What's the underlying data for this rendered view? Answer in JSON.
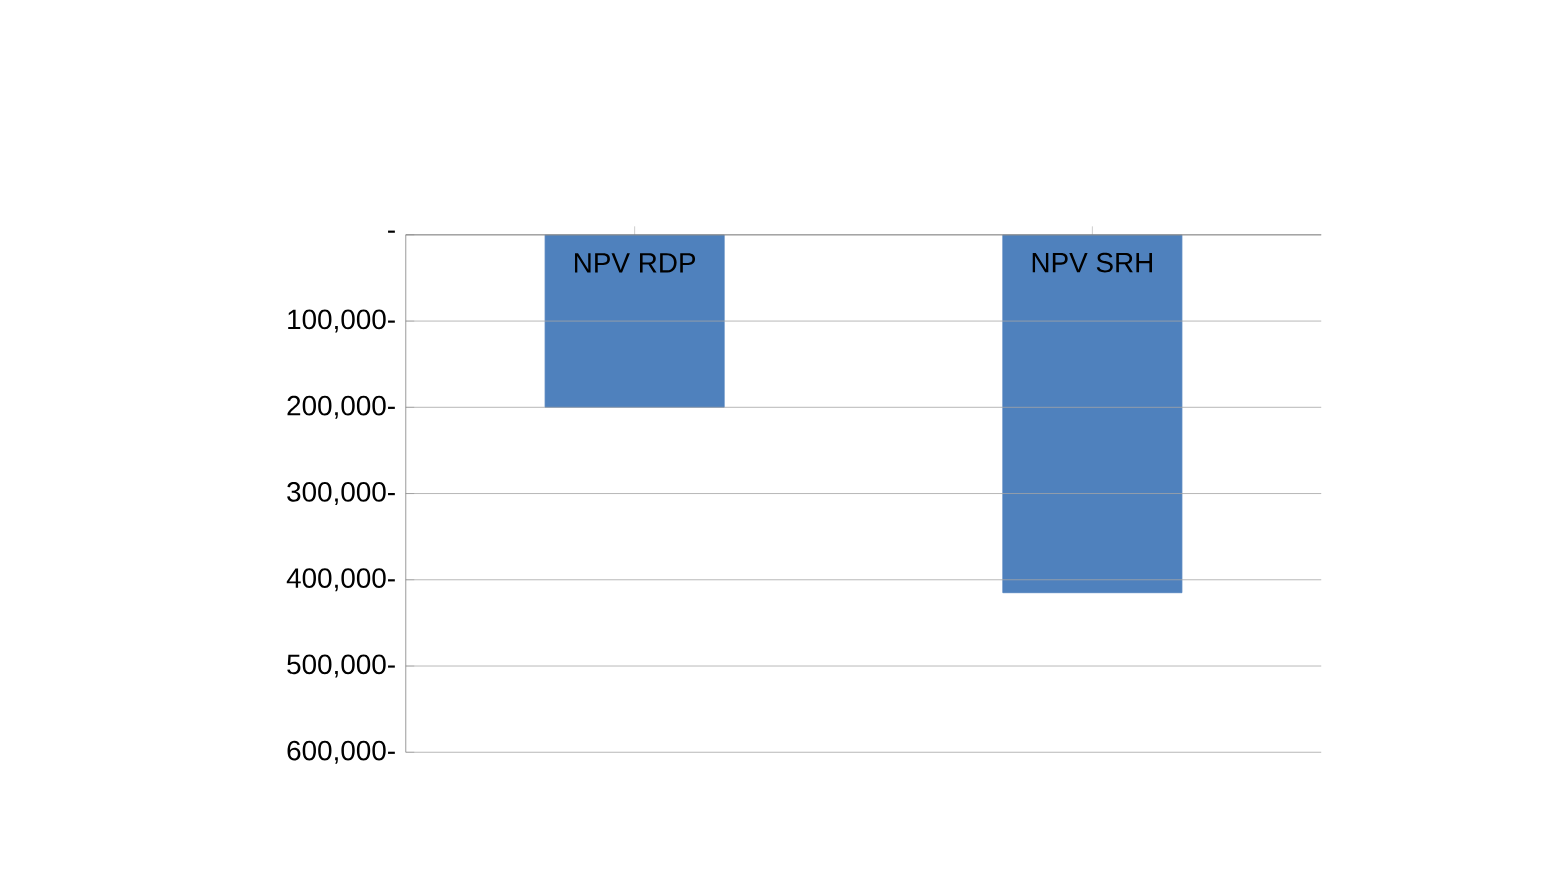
{
  "chart_data": {
    "type": "bar",
    "categories": [
      "NPV RDP",
      "NPV SRH"
    ],
    "values": [
      -200000,
      -415000
    ],
    "color": "#4f81bd",
    "ylim": [
      -600000,
      0
    ],
    "yticks": [
      {
        "value": 0,
        "label": "-"
      },
      {
        "value": -100000,
        "label": "100,000-"
      },
      {
        "value": -200000,
        "label": "200,000-"
      },
      {
        "value": -300000,
        "label": "300,000-"
      },
      {
        "value": -400000,
        "label": "400,000-"
      },
      {
        "value": -500000,
        "label": "500,000-"
      },
      {
        "value": -600000,
        "label": "600,000-"
      }
    ],
    "grid": "y"
  }
}
